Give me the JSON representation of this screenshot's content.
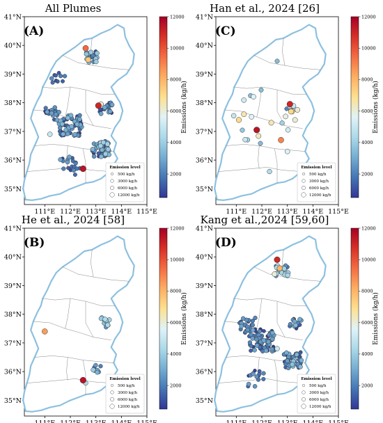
{
  "figure": {
    "panels": [
      {
        "id": "A",
        "title": "All Plumes",
        "label": "(A)"
      },
      {
        "id": "C",
        "title": "Han et al., 2024 [26]",
        "label": "(C)"
      },
      {
        "id": "B",
        "title": "He et al., 2024 [58]",
        "label": "(B)"
      },
      {
        "id": "D",
        "title": "Kang et al.,2024 [59,60]",
        "label": "(D)"
      }
    ],
    "x_ticks": [
      "111°E",
      "112°E",
      "113°E",
      "114°E",
      "115°E"
    ],
    "y_ticks": [
      "41°N",
      "40°N",
      "39°N",
      "38°N",
      "37°N",
      "36°N",
      "35°N"
    ],
    "colorbar": {
      "label": "Emissions (kg/h)",
      "ticks": [
        "12000",
        "10000",
        "8000",
        "6000",
        "4000",
        "2000"
      ],
      "range": [
        500,
        12000
      ],
      "colormap": [
        "#313695",
        "#4575b4",
        "#74add1",
        "#abd9e9",
        "#e0f3f8",
        "#fee090",
        "#fdae61",
        "#f46d43",
        "#d73027",
        "#a50026"
      ]
    },
    "legend": {
      "title": "Emission level",
      "entries": [
        "500 kg/h",
        "3000 kg/h",
        "6000 kg/h",
        "12000 kg/h"
      ]
    },
    "colors": {
      "province_outline": "#8cc0e0",
      "city_boundaries": "#777777",
      "point_edge": "#333333"
    }
  }
}
